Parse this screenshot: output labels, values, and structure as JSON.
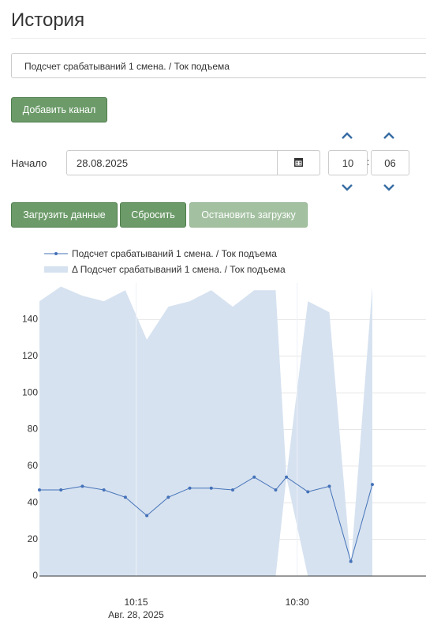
{
  "header": {
    "title": "История"
  },
  "channel_select": "Подсчет срабатываний 1 смена. / Ток подъема",
  "buttons": {
    "add_channel": "Добавить канал",
    "load": "Загрузить данные",
    "reset": "Сбросить",
    "stop": "Остановить загрузку"
  },
  "start": {
    "label": "Начало",
    "date": "28.08.2025",
    "hour": "10",
    "separator": ":",
    "minute": "06"
  },
  "chart_data": {
    "type": "line",
    "x": [
      "10:06",
      "10:08",
      "10:10",
      "10:12",
      "10:14",
      "10:16",
      "10:18",
      "10:20",
      "10:22",
      "10:24",
      "10:26",
      "10:28",
      "10:29",
      "10:31",
      "10:33",
      "10:35",
      "10:37"
    ],
    "xlim": [
      "10:06",
      "10:42"
    ],
    "xticks": [
      "10:15",
      "10:30"
    ],
    "x_date_label": "Авг. 28, 2025",
    "ylim": [
      0,
      160
    ],
    "yticks": [
      0,
      20,
      40,
      60,
      80,
      100,
      120,
      140
    ],
    "grid": true,
    "series": [
      {
        "name": "Подсчет срабатываний 1 смена. / Ток подъема",
        "color": "#4572b8",
        "values": [
          47,
          47,
          49,
          47,
          43,
          33,
          43,
          48,
          48,
          47,
          54,
          47,
          54,
          46,
          49,
          8,
          50
        ]
      },
      {
        "name": "Δ Подсчет срабатываний 1 смена. / Ток подъема",
        "color": "#d6e2f0",
        "low": [
          0,
          0,
          0,
          0,
          0,
          0,
          0,
          0,
          0,
          0,
          0,
          0,
          54,
          0,
          0,
          0,
          0
        ],
        "high": [
          150,
          158,
          153,
          150,
          156,
          129,
          147,
          150,
          156,
          147,
          156,
          156,
          54,
          150,
          144,
          6,
          158
        ]
      }
    ]
  }
}
